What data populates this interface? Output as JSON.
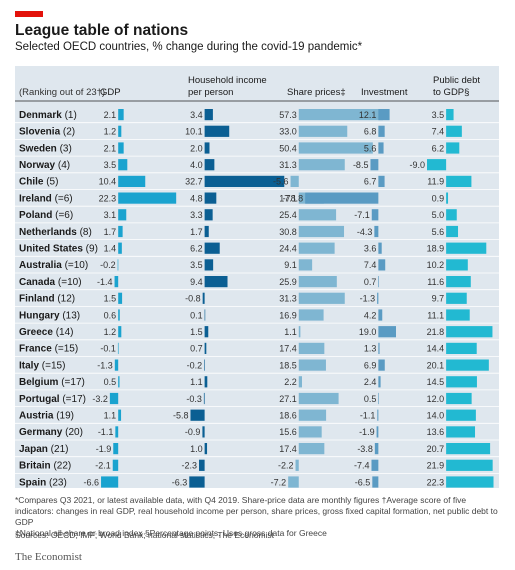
{
  "title": "League table of nations",
  "subtitle": "Selected OECD countries, % change during the covid-19 pandemic*",
  "chart_data": {
    "type": "table",
    "rank_header": "(Ranking out of 23†)",
    "columns": [
      {
        "key": "gdp",
        "header": [
          "",
          "GDP"
        ],
        "scale": [
          -7,
          23
        ]
      },
      {
        "key": "income",
        "header": [
          "Household income",
          "per person"
        ],
        "scale": [
          -6,
          33
        ]
      },
      {
        "key": "shares",
        "header": [
          "",
          "Share prices‡"
        ],
        "scale": [
          -8,
          58
        ]
      },
      {
        "key": "investment",
        "header": [
          "",
          "Investment"
        ],
        "scale": [
          -79,
          19
        ]
      },
      {
        "key": "debt",
        "header": [
          "Public debt",
          "to GDP§"
        ],
        "scale": [
          -9,
          23
        ]
      }
    ],
    "rows": [
      {
        "country": "Denmark (1)",
        "values": [
          2.1,
          3.4,
          57.3,
          12.1,
          3.5
        ]
      },
      {
        "country": "Slovenia (2)",
        "values": [
          1.2,
          10.1,
          33.0,
          6.8,
          7.4
        ]
      },
      {
        "country": "Sweden (3)",
        "values": [
          2.1,
          2.0,
          50.4,
          5.6,
          6.2
        ]
      },
      {
        "country": "Norway (4)",
        "values": [
          3.5,
          4.0,
          31.3,
          -8.5,
          -9.0
        ]
      },
      {
        "country": "Chile (5)",
        "values": [
          10.4,
          32.7,
          -5.6,
          6.7,
          11.9
        ]
      },
      {
        "country": "Ireland (=6)",
        "values": [
          22.3,
          4.8,
          17.1,
          -78.8,
          0.9
        ]
      },
      {
        "country": "Poland (=6)",
        "values": [
          3.1,
          3.3,
          25.4,
          -7.1,
          5.0
        ]
      },
      {
        "country": "Netherlands (8)",
        "values": [
          1.7,
          1.7,
          30.8,
          -4.3,
          5.6
        ]
      },
      {
        "country": "United States (9)",
        "values": [
          1.4,
          6.2,
          24.4,
          3.6,
          18.9
        ]
      },
      {
        "country": "Australia (=10)",
        "values": [
          -0.2,
          3.5,
          9.1,
          7.4,
          10.2
        ]
      },
      {
        "country": "Canada (=10)",
        "values": [
          -1.4,
          9.4,
          25.9,
          0.7,
          11.6
        ]
      },
      {
        "country": "Finland (12)",
        "values": [
          1.5,
          -0.8,
          31.3,
          -1.3,
          9.7
        ]
      },
      {
        "country": "Hungary (13)",
        "values": [
          0.6,
          0.1,
          16.9,
          4.2,
          11.1
        ]
      },
      {
        "country": "Greece (14)",
        "values": [
          1.2,
          1.5,
          1.1,
          19.0,
          21.8
        ]
      },
      {
        "country": "France (=15)",
        "values": [
          -0.1,
          0.7,
          17.4,
          1.3,
          14.4
        ]
      },
      {
        "country": "Italy (=15)",
        "values": [
          -1.3,
          -0.2,
          18.5,
          6.9,
          20.1
        ]
      },
      {
        "country": "Belgium (=17)",
        "values": [
          0.5,
          1.1,
          2.2,
          2.4,
          14.5
        ]
      },
      {
        "country": "Portugal (=17)",
        "values": [
          -3.2,
          -0.3,
          27.1,
          0.5,
          12.0
        ]
      },
      {
        "country": "Austria (19)",
        "values": [
          1.1,
          -5.8,
          18.6,
          -1.1,
          14.0
        ]
      },
      {
        "country": "Germany (20)",
        "values": [
          -1.1,
          -0.9,
          15.6,
          -1.9,
          13.6
        ]
      },
      {
        "country": "Japan (21)",
        "values": [
          -1.9,
          1.0,
          17.4,
          -3.8,
          20.7
        ]
      },
      {
        "country": "Britain (22)",
        "values": [
          -2.1,
          -2.3,
          -2.2,
          -7.4,
          21.9
        ]
      },
      {
        "country": "Spain (23)",
        "values": [
          -6.6,
          -6.3,
          -7.2,
          -6.5,
          22.3
        ]
      }
    ]
  },
  "colors": {
    "background": "#dfe7ee",
    "gdp": "#1aa3cf",
    "income": "#0b5f93",
    "shares": "#7fb6d2",
    "investment": "#5a9bc3",
    "debt": "#22b9d2",
    "brand_red": "#e3120b"
  },
  "notes": [
    "*Compares Q3 2021, or latest available data, with Q4 2019. Share-price data are monthly figures  †Average score of five indicators: changes in real GDP, real household income per person, share prices, gross fixed capital formation, net public debt to GDP",
    "‡National all-share or broad index   §Percentage points. Uses gross data for Greece"
  ],
  "sources": "Sources: OECD; IMF; World Bank; national statistics; The Economist",
  "brand": "The Economist"
}
